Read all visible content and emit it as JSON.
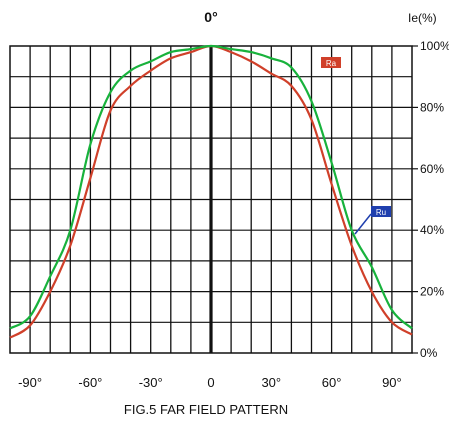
{
  "chart_data": {
    "type": "line",
    "title": "FIG.5 FAR FIELD PATTERN",
    "top_center_label": "0°",
    "ylabel": "Ie(%)",
    "xlim": [
      -100,
      100
    ],
    "ylim": [
      0,
      100
    ],
    "x_ticks": [
      {
        "value": -90,
        "label": "-90°"
      },
      {
        "value": -60,
        "label": "-60°"
      },
      {
        "value": -30,
        "label": "-30°"
      },
      {
        "value": 0,
        "label": "0"
      },
      {
        "value": 30,
        "label": "30°"
      },
      {
        "value": 60,
        "label": "60°"
      },
      {
        "value": 90,
        "label": "90°"
      }
    ],
    "y_ticks": [
      {
        "value": 0,
        "label": "0%"
      },
      {
        "value": 20,
        "label": "20%"
      },
      {
        "value": 40,
        "label": "40%"
      },
      {
        "value": 60,
        "label": "60%"
      },
      {
        "value": 80,
        "label": "80%"
      },
      {
        "value": 100,
        "label": "100%"
      }
    ],
    "grid": true,
    "series": [
      {
        "name": "Ra",
        "color": "#d0402a",
        "x": [
          -100,
          -90,
          -80,
          -70,
          -60,
          -50,
          -40,
          -30,
          -20,
          -10,
          0,
          10,
          20,
          30,
          40,
          50,
          60,
          70,
          80,
          90,
          100
        ],
        "values": [
          5,
          9,
          20,
          35,
          57,
          79,
          87,
          92,
          96,
          98,
          100,
          98,
          95,
          91,
          87,
          76,
          55,
          35,
          20,
          10,
          6
        ]
      },
      {
        "name": "Ru",
        "color": "#18b23c",
        "x": [
          -100,
          -90,
          -80,
          -70,
          -60,
          -50,
          -40,
          -30,
          -20,
          -10,
          0,
          10,
          20,
          30,
          40,
          50,
          60,
          70,
          80,
          90,
          100
        ],
        "values": [
          8,
          12,
          25,
          40,
          68,
          85,
          92,
          95,
          98,
          99,
          100,
          99,
          98,
          96,
          93,
          82,
          62,
          40,
          28,
          14,
          8
        ]
      }
    ],
    "legend": [
      {
        "label": "Ra",
        "series": "Ra",
        "box_color": "#d0402a",
        "position": "upper-right"
      },
      {
        "label": "Ru",
        "series": "Ru",
        "box_color": "#1f3fae",
        "position": "right"
      }
    ]
  }
}
